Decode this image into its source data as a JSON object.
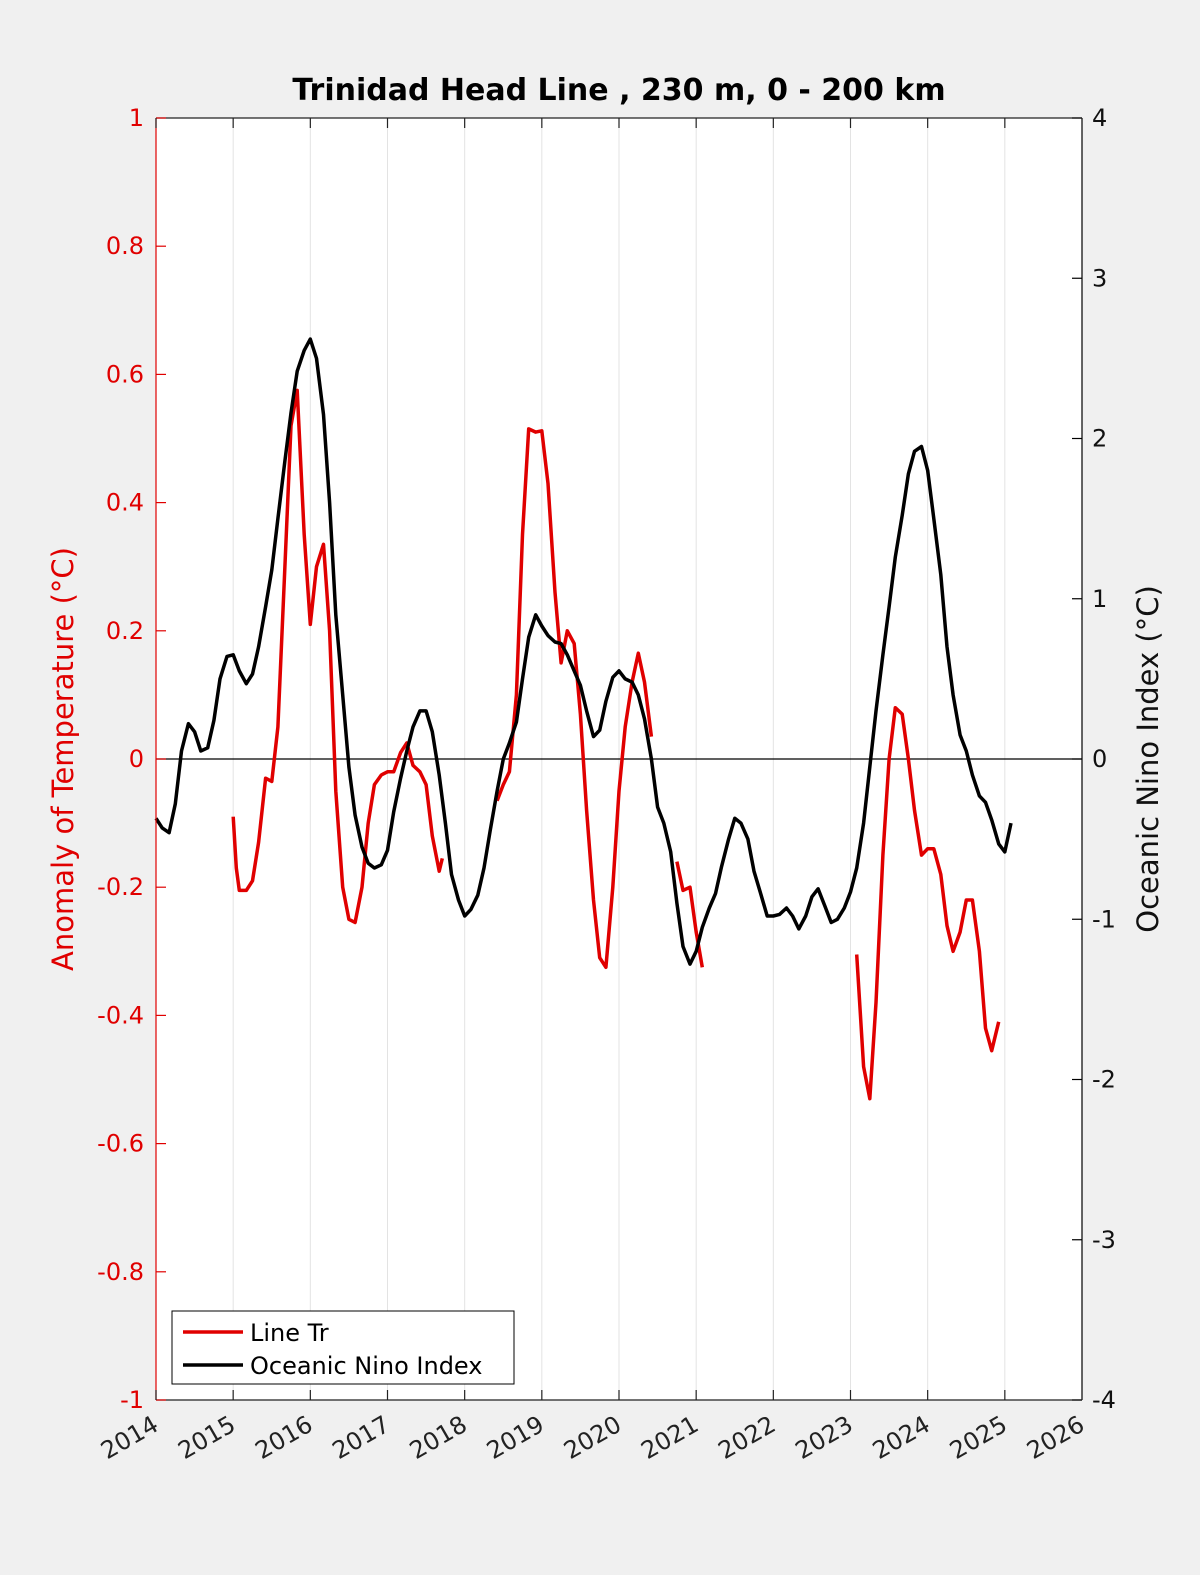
{
  "chart_data": {
    "type": "line",
    "title": "Trinidad Head Line , 230 m, 0 - 200 km",
    "xlim": [
      2014,
      2026
    ],
    "x_ticks": [
      "2014",
      "2015",
      "2016",
      "2017",
      "2018",
      "2019",
      "2020",
      "2021",
      "2022",
      "2023",
      "2024",
      "2025",
      "2026"
    ],
    "left_axis": {
      "label": "Anomaly of Temperature (°C)",
      "ylim": [
        -1,
        1
      ],
      "ticks": [
        "-1",
        "-0.8",
        "-0.6",
        "-0.4",
        "-0.2",
        "0",
        "0.2",
        "0.4",
        "0.6",
        "0.8",
        "1"
      ],
      "color": "#e00000"
    },
    "right_axis": {
      "label": "Oceanic Nino Index (°C)",
      "ylim": [
        -4,
        4
      ],
      "ticks": [
        "-4",
        "-3",
        "-2",
        "-1",
        "0",
        "1",
        "2",
        "3",
        "4"
      ],
      "color": "#000000"
    },
    "grid": "vertical",
    "legend_position": "bottom-left",
    "series": [
      {
        "name": "Line Tr",
        "axis": "left",
        "color": "#e00000",
        "segments": [
          [
            [
              2015.0,
              -0.09
            ],
            [
              2015.04,
              -0.17
            ],
            [
              2015.08,
              -0.205
            ],
            [
              2015.17,
              -0.205
            ],
            [
              2015.25,
              -0.19
            ],
            [
              2015.33,
              -0.13
            ],
            [
              2015.42,
              -0.03
            ],
            [
              2015.5,
              -0.035
            ],
            [
              2015.58,
              0.05
            ],
            [
              2015.67,
              0.3
            ],
            [
              2015.75,
              0.52
            ],
            [
              2015.83,
              0.575
            ],
            [
              2015.92,
              0.35
            ],
            [
              2016.0,
              0.21
            ],
            [
              2016.08,
              0.3
            ],
            [
              2016.17,
              0.335
            ],
            [
              2016.25,
              0.2
            ],
            [
              2016.33,
              -0.05
            ],
            [
              2016.42,
              -0.2
            ],
            [
              2016.5,
              -0.25
            ],
            [
              2016.58,
              -0.255
            ],
            [
              2016.67,
              -0.2
            ],
            [
              2016.75,
              -0.1
            ],
            [
              2016.83,
              -0.04
            ],
            [
              2016.92,
              -0.025
            ],
            [
              2017.0,
              -0.02
            ],
            [
              2017.08,
              -0.02
            ],
            [
              2017.17,
              0.01
            ],
            [
              2017.25,
              0.025
            ],
            [
              2017.33,
              -0.01
            ],
            [
              2017.42,
              -0.02
            ],
            [
              2017.5,
              -0.04
            ],
            [
              2017.58,
              -0.12
            ],
            [
              2017.67,
              -0.175
            ],
            [
              2017.71,
              -0.155
            ]
          ],
          [
            [
              2018.42,
              -0.065
            ],
            [
              2018.5,
              -0.04
            ],
            [
              2018.58,
              -0.02
            ],
            [
              2018.67,
              0.1
            ],
            [
              2018.75,
              0.35
            ],
            [
              2018.83,
              0.515
            ],
            [
              2018.92,
              0.51
            ],
            [
              2019.0,
              0.512
            ],
            [
              2019.08,
              0.43
            ],
            [
              2019.17,
              0.26
            ],
            [
              2019.25,
              0.15
            ],
            [
              2019.33,
              0.2
            ],
            [
              2019.42,
              0.18
            ],
            [
              2019.5,
              0.07
            ],
            [
              2019.58,
              -0.08
            ],
            [
              2019.67,
              -0.22
            ],
            [
              2019.75,
              -0.31
            ],
            [
              2019.83,
              -0.325
            ],
            [
              2019.92,
              -0.2
            ],
            [
              2020.0,
              -0.05
            ],
            [
              2020.08,
              0.05
            ],
            [
              2020.17,
              0.12
            ],
            [
              2020.25,
              0.165
            ],
            [
              2020.33,
              0.12
            ],
            [
              2020.42,
              0.035
            ]
          ],
          [
            [
              2020.75,
              -0.16
            ],
            [
              2020.83,
              -0.205
            ],
            [
              2020.92,
              -0.2
            ],
            [
              2021.0,
              -0.27
            ],
            [
              2021.08,
              -0.325
            ]
          ],
          [
            [
              2023.08,
              -0.305
            ],
            [
              2023.17,
              -0.48
            ],
            [
              2023.25,
              -0.53
            ],
            [
              2023.33,
              -0.38
            ],
            [
              2023.42,
              -0.15
            ],
            [
              2023.5,
              0.0
            ],
            [
              2023.58,
              0.08
            ],
            [
              2023.67,
              0.07
            ],
            [
              2023.75,
              0.0
            ],
            [
              2023.83,
              -0.08
            ],
            [
              2023.92,
              -0.15
            ],
            [
              2024.0,
              -0.14
            ],
            [
              2024.08,
              -0.14
            ],
            [
              2024.17,
              -0.18
            ],
            [
              2024.25,
              -0.26
            ],
            [
              2024.33,
              -0.3
            ],
            [
              2024.42,
              -0.27
            ],
            [
              2024.5,
              -0.22
            ],
            [
              2024.58,
              -0.22
            ],
            [
              2024.67,
              -0.3
            ],
            [
              2024.75,
              -0.42
            ],
            [
              2024.83,
              -0.455
            ],
            [
              2024.92,
              -0.41
            ]
          ]
        ]
      },
      {
        "name": "Oceanic Nino Index",
        "axis": "right",
        "color": "#000000",
        "segments": [
          [
            [
              2014.0,
              -0.37
            ],
            [
              2014.08,
              -0.43
            ],
            [
              2014.17,
              -0.46
            ],
            [
              2014.25,
              -0.28
            ],
            [
              2014.33,
              0.05
            ],
            [
              2014.42,
              0.22
            ],
            [
              2014.5,
              0.17
            ],
            [
              2014.58,
              0.05
            ],
            [
              2014.67,
              0.07
            ],
            [
              2014.75,
              0.24
            ],
            [
              2014.83,
              0.5
            ],
            [
              2014.92,
              0.64
            ],
            [
              2015.0,
              0.65
            ],
            [
              2015.08,
              0.55
            ],
            [
              2015.17,
              0.47
            ],
            [
              2015.25,
              0.53
            ],
            [
              2015.33,
              0.7
            ],
            [
              2015.42,
              0.95
            ],
            [
              2015.5,
              1.18
            ],
            [
              2015.58,
              1.5
            ],
            [
              2015.67,
              1.86
            ],
            [
              2015.75,
              2.16
            ],
            [
              2015.83,
              2.42
            ],
            [
              2015.92,
              2.55
            ],
            [
              2016.0,
              2.62
            ],
            [
              2016.08,
              2.5
            ],
            [
              2016.17,
              2.15
            ],
            [
              2016.25,
              1.6
            ],
            [
              2016.33,
              0.9
            ],
            [
              2016.42,
              0.4
            ],
            [
              2016.5,
              -0.05
            ],
            [
              2016.58,
              -0.35
            ],
            [
              2016.67,
              -0.55
            ],
            [
              2016.75,
              -0.65
            ],
            [
              2016.83,
              -0.68
            ],
            [
              2016.92,
              -0.66
            ],
            [
              2017.0,
              -0.57
            ],
            [
              2017.08,
              -0.33
            ],
            [
              2017.17,
              -0.12
            ],
            [
              2017.25,
              0.05
            ],
            [
              2017.33,
              0.2
            ],
            [
              2017.42,
              0.3
            ],
            [
              2017.5,
              0.3
            ],
            [
              2017.58,
              0.17
            ],
            [
              2017.67,
              -0.1
            ],
            [
              2017.75,
              -0.4
            ],
            [
              2017.83,
              -0.72
            ],
            [
              2017.92,
              -0.88
            ],
            [
              2018.0,
              -0.98
            ],
            [
              2018.08,
              -0.94
            ],
            [
              2018.17,
              -0.85
            ],
            [
              2018.25,
              -0.68
            ],
            [
              2018.33,
              -0.45
            ],
            [
              2018.42,
              -0.2
            ],
            [
              2018.5,
              0.0
            ],
            [
              2018.58,
              0.1
            ],
            [
              2018.67,
              0.23
            ],
            [
              2018.75,
              0.5
            ],
            [
              2018.83,
              0.76
            ],
            [
              2018.92,
              0.9
            ],
            [
              2019.0,
              0.83
            ],
            [
              2019.08,
              0.77
            ],
            [
              2019.17,
              0.73
            ],
            [
              2019.25,
              0.72
            ],
            [
              2019.33,
              0.65
            ],
            [
              2019.42,
              0.55
            ],
            [
              2019.5,
              0.46
            ],
            [
              2019.58,
              0.3
            ],
            [
              2019.67,
              0.14
            ],
            [
              2019.75,
              0.18
            ],
            [
              2019.83,
              0.36
            ],
            [
              2019.92,
              0.51
            ],
            [
              2020.0,
              0.55
            ],
            [
              2020.08,
              0.5
            ],
            [
              2020.17,
              0.48
            ],
            [
              2020.25,
              0.4
            ],
            [
              2020.33,
              0.25
            ],
            [
              2020.42,
              0.0
            ],
            [
              2020.5,
              -0.3
            ],
            [
              2020.58,
              -0.4
            ],
            [
              2020.67,
              -0.58
            ],
            [
              2020.75,
              -0.9
            ],
            [
              2020.83,
              -1.17
            ],
            [
              2020.92,
              -1.28
            ],
            [
              2021.0,
              -1.2
            ],
            [
              2021.08,
              -1.05
            ],
            [
              2021.17,
              -0.93
            ],
            [
              2021.25,
              -0.84
            ],
            [
              2021.33,
              -0.67
            ],
            [
              2021.42,
              -0.5
            ],
            [
              2021.5,
              -0.37
            ],
            [
              2021.58,
              -0.4
            ],
            [
              2021.67,
              -0.5
            ],
            [
              2021.75,
              -0.7
            ],
            [
              2021.83,
              -0.83
            ],
            [
              2021.92,
              -0.98
            ],
            [
              2022.0,
              -0.98
            ],
            [
              2022.08,
              -0.97
            ],
            [
              2022.17,
              -0.93
            ],
            [
              2022.25,
              -0.98
            ],
            [
              2022.33,
              -1.06
            ],
            [
              2022.42,
              -0.98
            ],
            [
              2022.5,
              -0.86
            ],
            [
              2022.58,
              -0.81
            ],
            [
              2022.67,
              -0.92
            ],
            [
              2022.75,
              -1.02
            ],
            [
              2022.83,
              -1.0
            ],
            [
              2022.92,
              -0.93
            ],
            [
              2023.0,
              -0.83
            ],
            [
              2023.08,
              -0.68
            ],
            [
              2023.17,
              -0.4
            ],
            [
              2023.25,
              -0.05
            ],
            [
              2023.33,
              0.3
            ],
            [
              2023.42,
              0.65
            ],
            [
              2023.5,
              0.95
            ],
            [
              2023.58,
              1.26
            ],
            [
              2023.67,
              1.52
            ],
            [
              2023.75,
              1.78
            ],
            [
              2023.83,
              1.92
            ],
            [
              2023.92,
              1.95
            ],
            [
              2024.0,
              1.8
            ],
            [
              2024.08,
              1.5
            ],
            [
              2024.17,
              1.15
            ],
            [
              2024.25,
              0.7
            ],
            [
              2024.33,
              0.4
            ],
            [
              2024.42,
              0.15
            ],
            [
              2024.5,
              0.05
            ],
            [
              2024.58,
              -0.1
            ],
            [
              2024.67,
              -0.23
            ],
            [
              2024.75,
              -0.27
            ],
            [
              2024.83,
              -0.38
            ],
            [
              2024.92,
              -0.53
            ],
            [
              2025.0,
              -0.58
            ],
            [
              2025.08,
              -0.4
            ]
          ]
        ]
      }
    ]
  }
}
